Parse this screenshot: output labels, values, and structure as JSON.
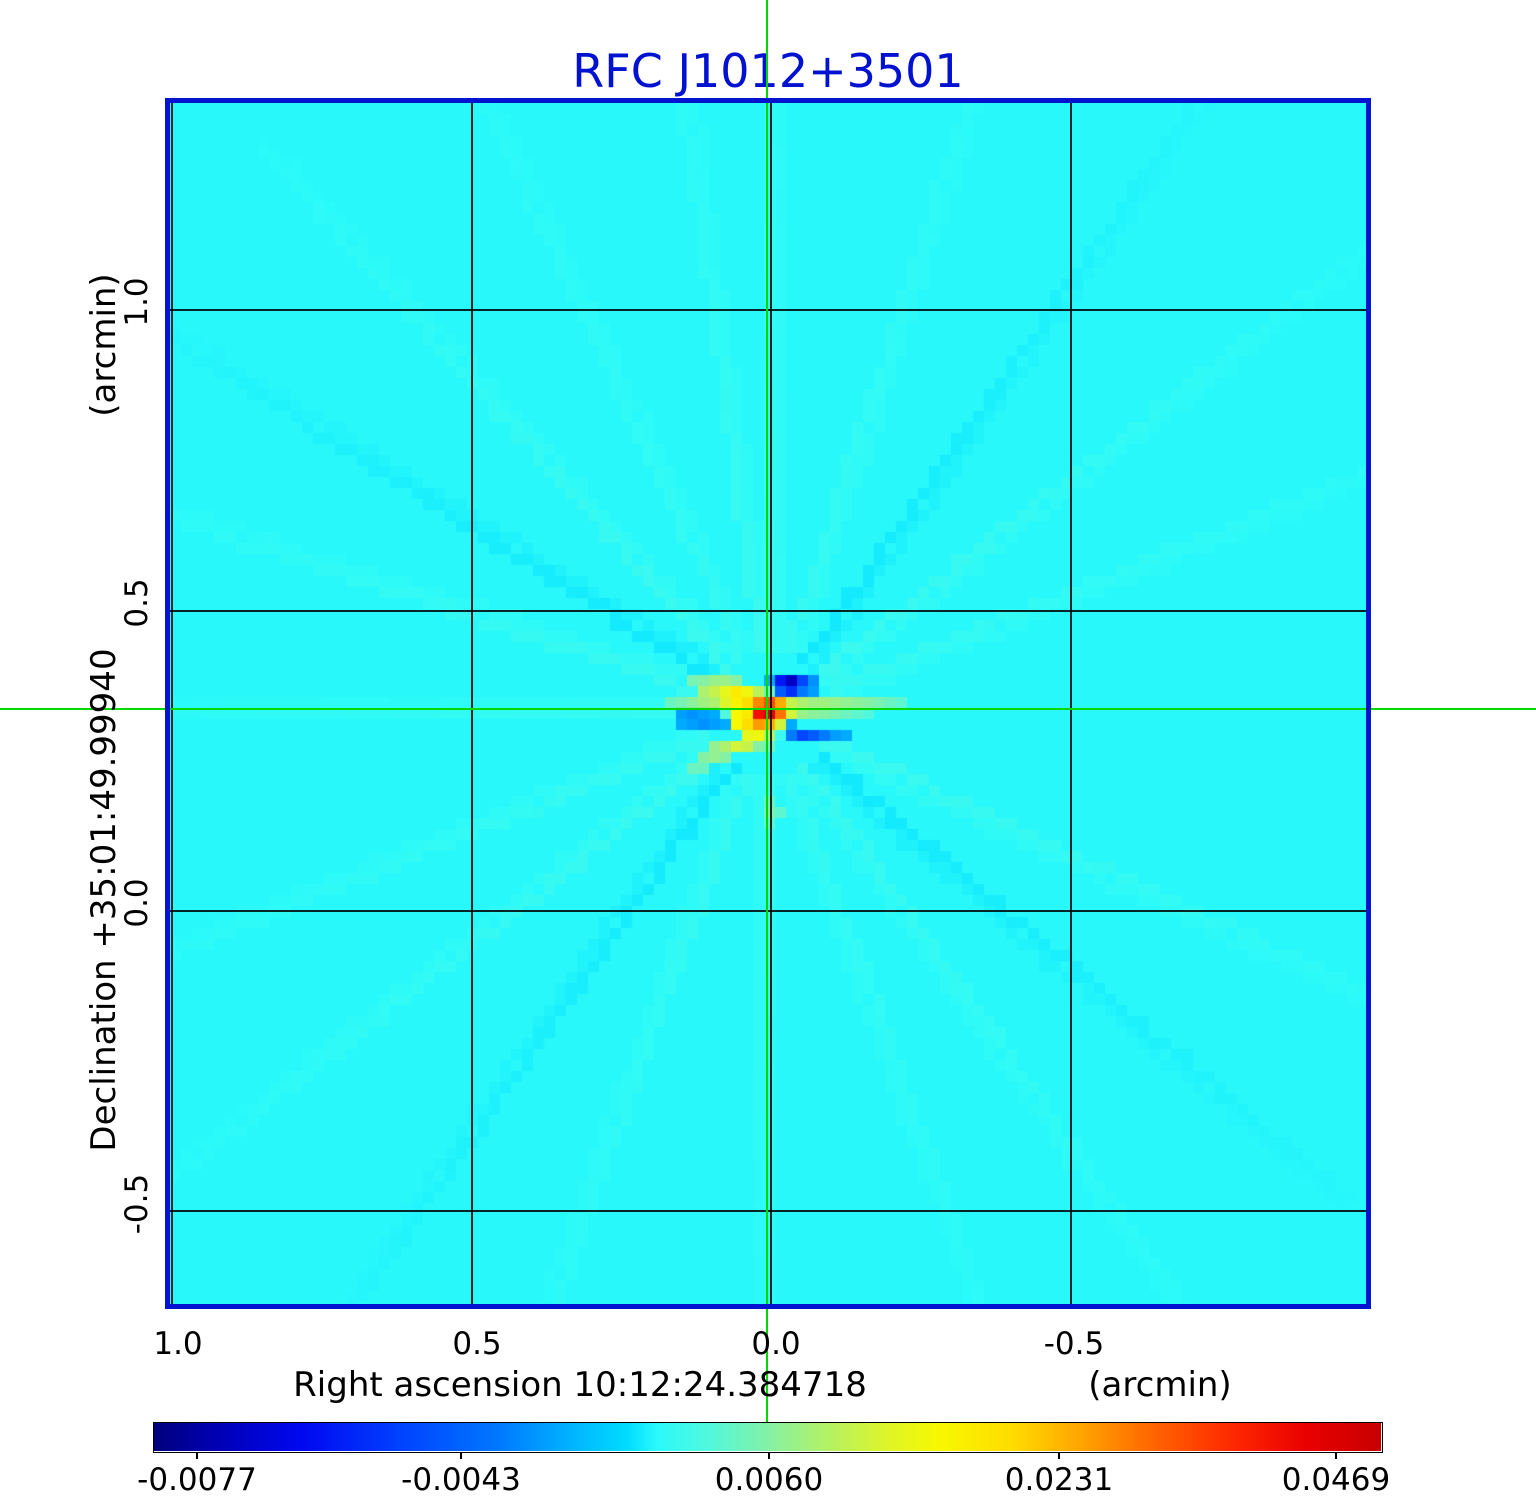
{
  "title": {
    "text": "RFC J1012+3501",
    "color": "#0011CF"
  },
  "chart_data": {
    "type": "heatmap",
    "title": "RFC J1012+3501",
    "xlabel": "Right ascension  10:12:24.384718",
    "xunit": "(arcmin)",
    "ylabel": "Declination  +35:01:49.99940",
    "yunit": "(arcmin)",
    "xlim": [
      1.003,
      -0.993
    ],
    "ylim": [
      -0.655,
      1.345
    ],
    "grid_on": true,
    "x_ticks": [
      {
        "label": "1.0",
        "ra": 1.0
      },
      {
        "label": "0.5",
        "ra": 0.5
      },
      {
        "label": "0.0",
        "ra": 0.0
      },
      {
        "label": "-0.5",
        "ra": -0.5
      }
    ],
    "y_ticks": [
      {
        "label": "1.0",
        "dec": 1.0
      },
      {
        "label": "0.5",
        "dec": 0.5
      },
      {
        "label": "0.0",
        "dec": 0.0
      },
      {
        "label": "-0.5",
        "dec": -0.5
      }
    ],
    "frame_color": "#0013CE",
    "grid_color": "#000000",
    "crosshair": {
      "color": "#00D900",
      "ra_arcmin": 0.007,
      "dec_arcmin": 0.337
    },
    "source": {
      "name": "RFC J1012+3501",
      "peak_value": 0.0469,
      "ra_arcmin": 0.007,
      "dec_arcmin": 0.337
    },
    "background_value": 0.0022,
    "cell_arcmin": 0.0184,
    "value_to_t_anchors": [
      [
        -0.0077,
        0.035
      ],
      [
        -0.0043,
        0.25
      ],
      [
        0.006,
        0.501
      ],
      [
        0.0231,
        0.738
      ],
      [
        0.0469,
        0.963
      ]
    ],
    "colormap_stops": [
      [
        0.0,
        "#00007D"
      ],
      [
        0.05,
        "#0000B4"
      ],
      [
        0.12,
        "#0008F0"
      ],
      [
        0.2,
        "#0041FF"
      ],
      [
        0.28,
        "#0078FF"
      ],
      [
        0.34,
        "#00B4FF"
      ],
      [
        0.385,
        "#00DCFF"
      ],
      [
        0.41,
        "#2BFAFA"
      ],
      [
        0.45,
        "#4FF8E0"
      ],
      [
        0.5,
        "#84F1A6"
      ],
      [
        0.55,
        "#B5F163"
      ],
      [
        0.6,
        "#E0F527"
      ],
      [
        0.64,
        "#F8F800"
      ],
      [
        0.7,
        "#FFDC00"
      ],
      [
        0.755,
        "#FFA500"
      ],
      [
        0.82,
        "#FF6000"
      ],
      [
        0.88,
        "#FF2800"
      ],
      [
        0.94,
        "#E80000"
      ],
      [
        1.0,
        "#C80000"
      ]
    ],
    "colorbar": {
      "ticks": [
        {
          "label": "-0.0077",
          "value": -0.0077,
          "t": 0.035
        },
        {
          "label": "-0.0043",
          "value": -0.0043,
          "t": 0.25
        },
        {
          "label": "0.0060",
          "value": 0.006,
          "t": 0.501
        },
        {
          "label": "0.0231",
          "value": 0.0231,
          "t": 0.738
        },
        {
          "label": "0.0469",
          "value": 0.0469,
          "t": 0.963
        }
      ]
    },
    "features_cells": [
      [
        0,
        0,
        0.047
      ],
      [
        -1,
        0,
        0.042
      ],
      [
        1,
        0,
        0.03
      ],
      [
        -2,
        0,
        0.018
      ],
      [
        2,
        0,
        0.012
      ],
      [
        -3,
        0,
        0.016
      ],
      [
        0,
        -1,
        0.034
      ],
      [
        -1,
        -1,
        0.028
      ],
      [
        1,
        -1,
        0.024
      ],
      [
        -2,
        -1,
        0.02
      ],
      [
        -3,
        -1,
        0.017
      ],
      [
        -4,
        -1,
        0.013
      ],
      [
        2,
        -1,
        0.011
      ],
      [
        0,
        1,
        0.024
      ],
      [
        -1,
        1,
        0.026
      ],
      [
        -2,
        1,
        0.02
      ],
      [
        -3,
        1,
        0.016
      ],
      [
        1,
        1,
        0.012
      ],
      [
        -3,
        -2,
        0.018
      ],
      [
        -2,
        -2,
        0.015
      ],
      [
        -1,
        -2,
        0.01
      ],
      [
        -4,
        -2,
        0.014
      ],
      [
        -5,
        -2,
        0.011
      ],
      [
        -6,
        -2,
        0.009
      ],
      [
        0,
        -2,
        0.005
      ],
      [
        1,
        -2,
        -0.0045
      ],
      [
        2,
        -2,
        -0.0055
      ],
      [
        3,
        -2,
        -0.003
      ],
      [
        4,
        -2,
        -0.0015
      ],
      [
        0,
        -3,
        -0.001
      ],
      [
        1,
        -3,
        -0.006
      ],
      [
        2,
        -3,
        -0.0072
      ],
      [
        3,
        -3,
        -0.005
      ],
      [
        4,
        -3,
        -0.002
      ],
      [
        -3,
        -3,
        0.006
      ],
      [
        -4,
        -3,
        0.0075
      ],
      [
        -5,
        -3,
        0.0075
      ],
      [
        -6,
        -3,
        0.006
      ],
      [
        -7,
        -3,
        0.0055
      ],
      [
        2,
        2,
        -0.003
      ],
      [
        3,
        2,
        -0.005
      ],
      [
        4,
        2,
        -0.0045
      ],
      [
        5,
        2,
        -0.003
      ],
      [
        6,
        2,
        -0.0015
      ],
      [
        7,
        2,
        -0.001
      ],
      [
        2,
        1,
        -0.001
      ],
      [
        -2,
        2,
        0.014
      ],
      [
        -1,
        2,
        0.015
      ],
      [
        0,
        2,
        0.009
      ],
      [
        1,
        2,
        0.003
      ],
      [
        -3,
        3,
        0.012
      ],
      [
        -2,
        3,
        0.011
      ],
      [
        -4,
        3,
        0.009
      ],
      [
        -1,
        3,
        0.006
      ],
      [
        0,
        3,
        0.005
      ],
      [
        -5,
        3,
        0.007
      ],
      [
        -5,
        4,
        0.007
      ],
      [
        -6,
        4,
        0.006
      ],
      [
        -4,
        4,
        0.006
      ],
      [
        -7,
        5,
        0.005
      ],
      [
        -6,
        5,
        0.005
      ],
      [
        -5,
        -1,
        0.009
      ],
      [
        -6,
        -1,
        0.008
      ],
      [
        -7,
        -1,
        0.0065
      ],
      [
        -8,
        -1,
        0.0055
      ],
      [
        -9,
        -1,
        0.005
      ],
      [
        -4,
        0,
        0.004
      ],
      [
        3,
        -1,
        0.009
      ],
      [
        4,
        -1,
        0.008
      ],
      [
        5,
        -1,
        0.008
      ],
      [
        6,
        -1,
        0.0075
      ],
      [
        7,
        -1,
        0.007
      ],
      [
        8,
        -1,
        0.0065
      ],
      [
        9,
        -1,
        0.006
      ],
      [
        10,
        -1,
        0.0055
      ],
      [
        11,
        -1,
        0.005
      ],
      [
        12,
        -1,
        0.0045
      ],
      [
        3,
        0,
        0.0075
      ],
      [
        4,
        0,
        0.0065
      ],
      [
        5,
        0,
        0.006
      ],
      [
        6,
        0,
        0.0055
      ],
      [
        7,
        0,
        0.005
      ],
      [
        8,
        0,
        0.0045
      ],
      [
        9,
        0,
        0.004
      ],
      [
        -8,
        0,
        -0.0015
      ],
      [
        -7,
        0,
        -0.002
      ],
      [
        -6,
        0,
        -0.0015
      ],
      [
        -5,
        0,
        -0.001
      ],
      [
        -8,
        1,
        -0.001
      ],
      [
        -7,
        1,
        -0.0015
      ],
      [
        -6,
        1,
        -0.002
      ],
      [
        -5,
        1,
        -0.0015
      ],
      [
        -4,
        1,
        -0.001
      ],
      [
        0,
        8,
        0.005
      ],
      [
        0,
        9,
        0.0055
      ],
      [
        1,
        9,
        0.0045
      ],
      [
        0,
        10,
        0.0045
      ]
    ],
    "sidelobe_rays": [
      {
        "a": 25,
        "s": 0.0009
      },
      {
        "a": 40,
        "s": -0.0006
      },
      {
        "a": 55,
        "s": 0.0008
      },
      {
        "a": 70,
        "s": 0.0006
      },
      {
        "a": 90,
        "s": 0.0008
      },
      {
        "a": 110,
        "s": 0.0007
      },
      {
        "a": 125,
        "s": -0.0006
      },
      {
        "a": 142,
        "s": 0.0009
      },
      {
        "a": 158,
        "s": 0.0007
      },
      {
        "a": 180,
        "s": 0.0006
      },
      {
        "a": 198,
        "s": 0.0008
      },
      {
        "a": 212,
        "s": -0.0006
      },
      {
        "a": 228,
        "s": 0.0009
      },
      {
        "a": 245,
        "s": 0.0006
      },
      {
        "a": 262,
        "s": 0.0008
      },
      {
        "a": 270,
        "s": 0.0009
      },
      {
        "a": 288,
        "s": 0.0007
      },
      {
        "a": 305,
        "s": -0.0006
      },
      {
        "a": 322,
        "s": 0.0009
      },
      {
        "a": 338,
        "s": 0.0007
      }
    ]
  }
}
